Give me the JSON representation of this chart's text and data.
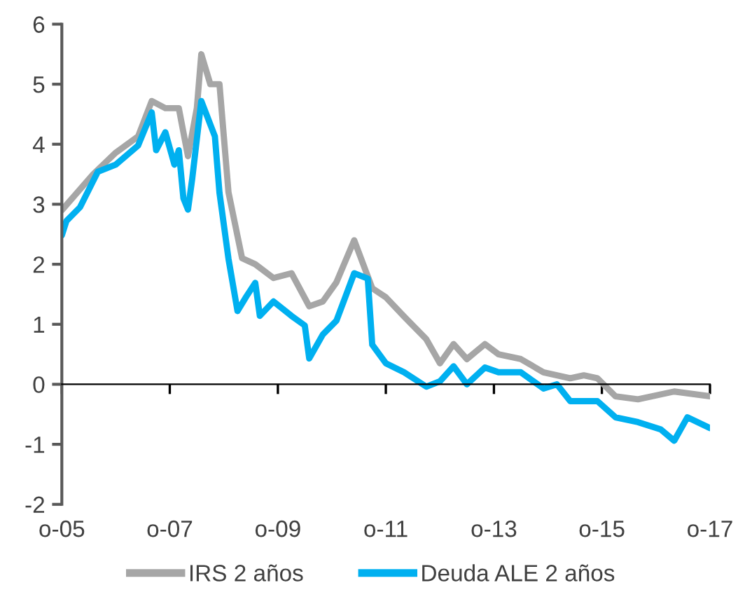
{
  "chart_data": {
    "type": "line",
    "xlim": [
      "2005-10",
      "2017-10"
    ],
    "xticks": [
      {
        "value": "2005-10",
        "label": "o-05"
      },
      {
        "value": "2007-10",
        "label": "o-07"
      },
      {
        "value": "2009-10",
        "label": "o-09"
      },
      {
        "value": "2011-10",
        "label": "o-11"
      },
      {
        "value": "2013-10",
        "label": "o-13"
      },
      {
        "value": "2015-10",
        "label": "o-15"
      },
      {
        "value": "2017-10",
        "label": "o-17"
      }
    ],
    "ylim": [
      -2,
      6
    ],
    "yticks": [
      -2,
      -1,
      0,
      1,
      2,
      3,
      4,
      5,
      6
    ],
    "legend": "bottom",
    "marker": "none",
    "line_style": "solid",
    "series": [
      {
        "name": "IRS 2 años",
        "color": "#a6a6a6",
        "x": [
          "2005-10",
          "2006-05",
          "2006-10",
          "2007-03",
          "2007-06",
          "2007-09",
          "2007-12",
          "2008-02",
          "2008-04",
          "2008-05",
          "2008-07",
          "2008-09",
          "2008-11",
          "2009-02",
          "2009-05",
          "2009-09",
          "2010-01",
          "2010-05",
          "2010-08",
          "2010-11",
          "2011-03",
          "2011-07",
          "2011-10",
          "2012-02",
          "2012-07",
          "2012-10",
          "2013-01",
          "2013-04",
          "2013-08",
          "2013-11",
          "2014-04",
          "2014-09",
          "2015-03",
          "2015-06",
          "2015-09",
          "2016-01",
          "2016-06",
          "2017-02",
          "2017-10"
        ],
        "values": [
          2.9,
          3.5,
          3.86,
          4.13,
          4.72,
          4.6,
          4.6,
          3.8,
          4.6,
          5.5,
          5.0,
          5.0,
          3.2,
          2.1,
          2.0,
          1.77,
          1.85,
          1.3,
          1.38,
          1.7,
          2.4,
          1.6,
          1.45,
          1.13,
          0.75,
          0.35,
          0.67,
          0.42,
          0.67,
          0.5,
          0.42,
          0.2,
          0.1,
          0.15,
          0.1,
          -0.2,
          -0.25,
          -0.12,
          -0.2
        ]
      },
      {
        "name": "Deuda ALE 2 años",
        "color": "#00b0f0",
        "x": [
          "2005-10",
          "2005-11",
          "2006-02",
          "2006-06",
          "2006-10",
          "2007-03",
          "2007-06",
          "2007-07",
          "2007-09",
          "2007-11",
          "2007-12",
          "2008-01",
          "2008-02",
          "2008-03",
          "2008-05",
          "2008-08",
          "2008-09",
          "2008-11",
          "2009-01",
          "2009-03",
          "2009-05",
          "2009-06",
          "2009-09",
          "2010-01",
          "2010-04",
          "2010-05",
          "2010-08",
          "2010-11",
          "2011-01",
          "2011-03",
          "2011-06",
          "2011-07",
          "2011-10",
          "2012-02",
          "2012-07",
          "2012-10",
          "2013-01",
          "2013-04",
          "2013-08",
          "2013-11",
          "2014-04",
          "2014-09",
          "2014-12",
          "2015-03",
          "2015-09",
          "2016-01",
          "2016-06",
          "2016-11",
          "2017-02",
          "2017-05",
          "2017-10"
        ],
        "values": [
          2.48,
          2.72,
          2.95,
          3.54,
          3.66,
          3.98,
          4.53,
          3.9,
          4.2,
          3.66,
          3.9,
          3.1,
          2.91,
          3.43,
          4.72,
          4.13,
          3.19,
          2.09,
          1.22,
          1.46,
          1.69,
          1.14,
          1.38,
          1.14,
          0.98,
          0.43,
          0.83,
          1.06,
          1.46,
          1.85,
          1.76,
          0.66,
          0.35,
          0.2,
          -0.04,
          0.05,
          0.3,
          0.0,
          0.28,
          0.2,
          0.2,
          -0.07,
          0.0,
          -0.28,
          -0.28,
          -0.55,
          -0.63,
          -0.75,
          -0.94,
          -0.55,
          -0.73
        ]
      }
    ]
  }
}
